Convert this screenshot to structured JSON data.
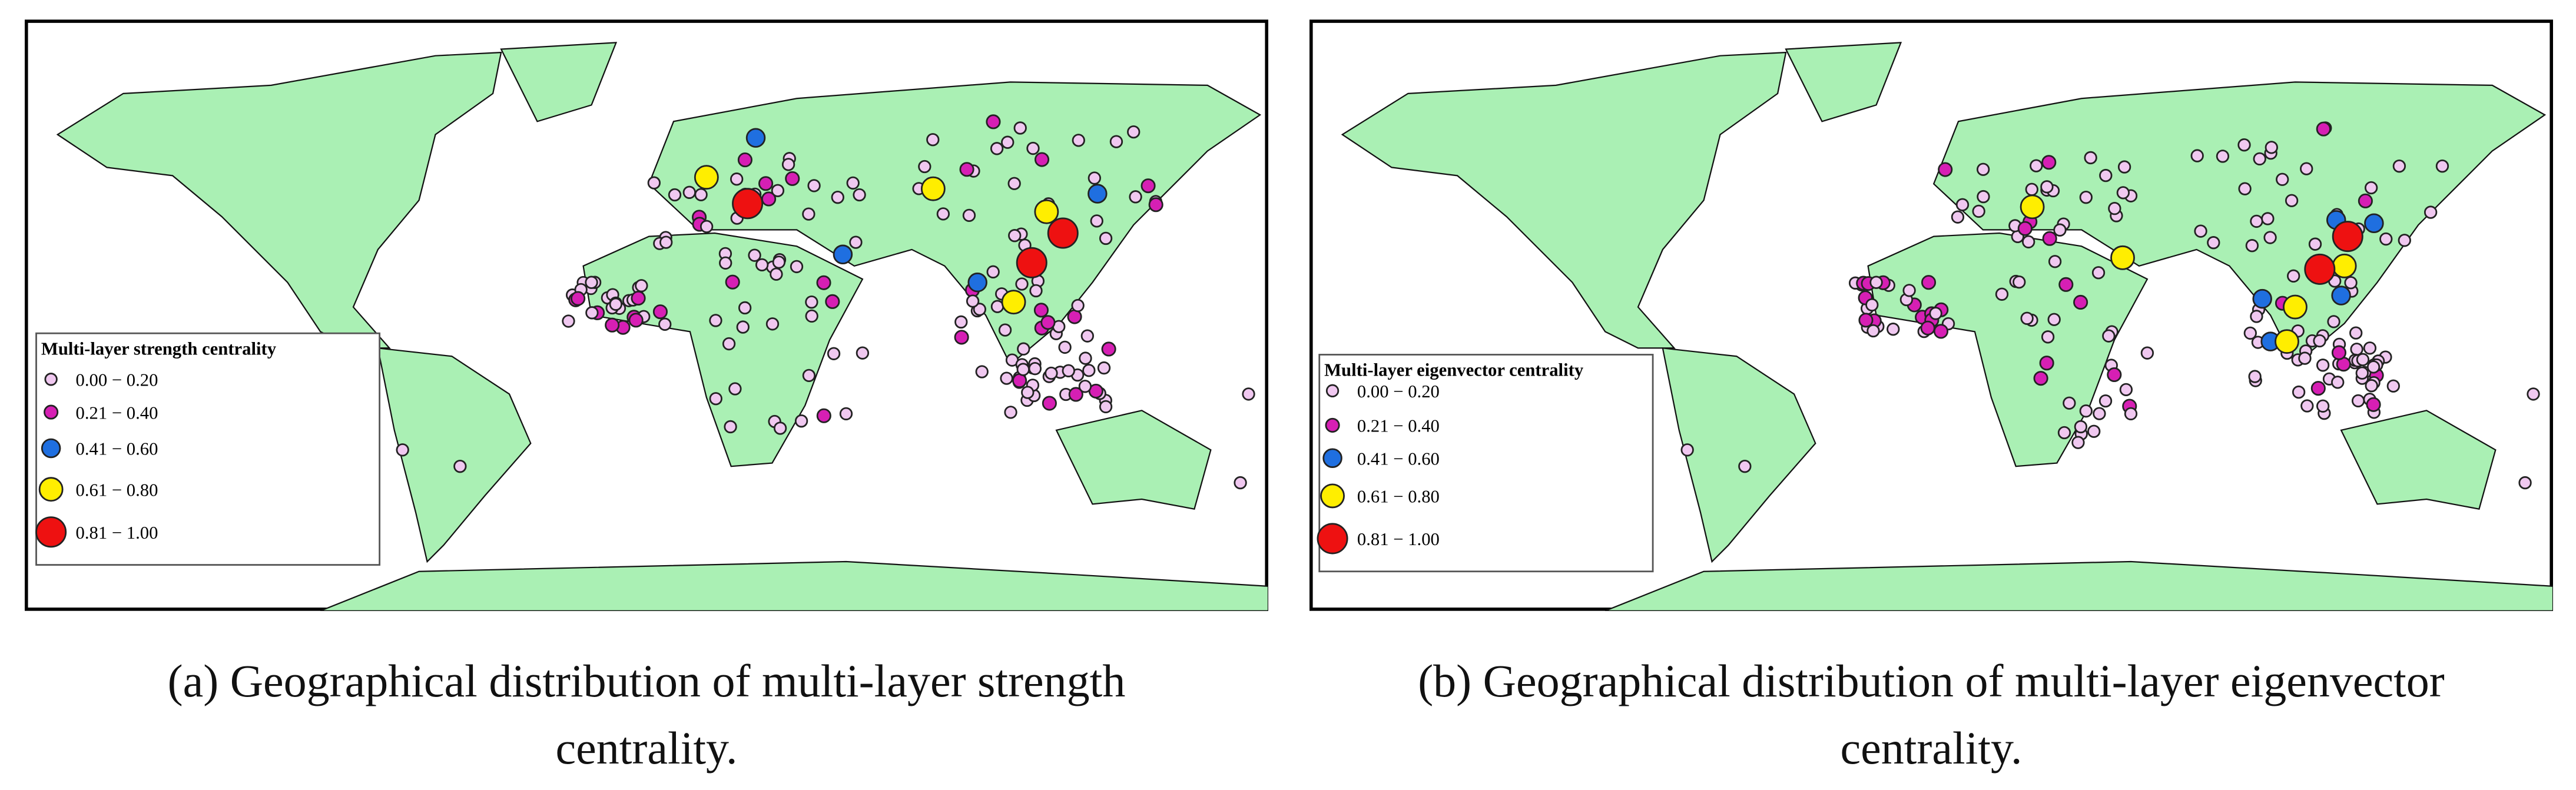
{
  "panels": [
    {
      "label": "(a)",
      "caption": "Geographical distribution of multi-layer strength centrality.",
      "legend": {
        "title": "Multi-layer strength centrality",
        "items": [
          "0.00 − 0.20",
          "0.21 − 0.40",
          "0.41 − 0.60",
          "0.61 − 0.80",
          "0.81 − 1.00"
        ]
      }
    },
    {
      "label": "(b)",
      "caption": "Geographical distribution of multi-layer eigenvector centrality.",
      "legend": {
        "title": "Multi-layer eigenvector centrality",
        "items": [
          "0.00 − 0.20",
          "0.21 − 0.40",
          "0.41 − 0.60",
          "0.61 − 0.80",
          "0.81 − 1.00"
        ]
      }
    }
  ]
}
